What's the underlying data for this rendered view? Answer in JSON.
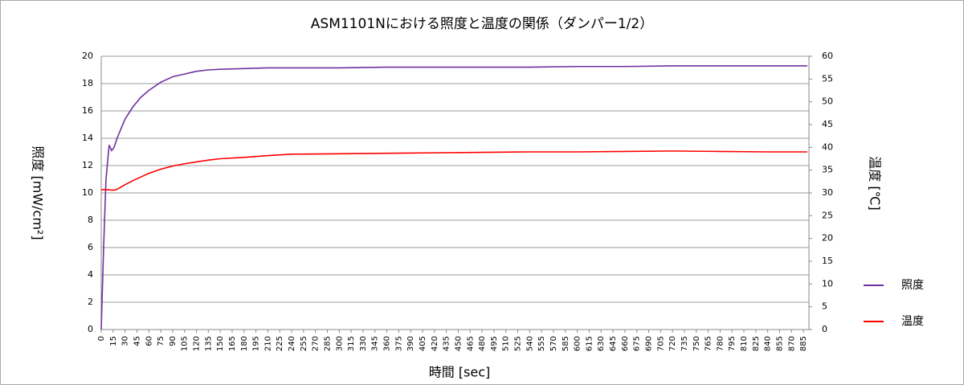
{
  "chart_data": {
    "type": "line",
    "title": "ASM1101Nにおける照度と温度の関係（ダンパー1/2）",
    "x_label": "時間 [sec]",
    "y_label": "照度 [mW/cm²]",
    "y2_label": "温度 [℃]",
    "x": [
      0,
      3,
      6,
      10,
      13,
      16,
      20,
      25,
      30,
      40,
      50,
      60,
      75,
      90,
      105,
      120,
      135,
      150,
      180,
      210,
      240,
      300,
      360,
      420,
      480,
      540,
      600,
      660,
      720,
      780,
      840,
      890
    ],
    "series": [
      {
        "name": "照度",
        "color": "#7030a0",
        "axis": "y",
        "values": [
          0,
          6,
          11,
          13.5,
          13.1,
          13.3,
          14.0,
          14.7,
          15.4,
          16.3,
          17.0,
          17.5,
          18.1,
          18.5,
          18.7,
          18.9,
          19.0,
          19.05,
          19.1,
          19.15,
          19.15,
          19.15,
          19.2,
          19.2,
          19.2,
          19.2,
          19.25,
          19.25,
          19.3,
          19.3,
          19.3,
          19.3
        ]
      },
      {
        "name": "温度",
        "color": "#ff0000",
        "axis": "y2",
        "values": [
          30.7,
          30.7,
          30.7,
          30.7,
          30.6,
          30.6,
          30.8,
          31.3,
          31.8,
          32.7,
          33.5,
          34.3,
          35.2,
          35.9,
          36.4,
          36.8,
          37.2,
          37.5,
          37.8,
          38.2,
          38.5,
          38.6,
          38.7,
          38.8,
          38.9,
          39.0,
          39.0,
          39.1,
          39.2,
          39.1,
          39.0,
          39.0
        ]
      }
    ],
    "xlim": [
      0,
      892
    ],
    "xticks": [
      0,
      15,
      30,
      45,
      60,
      75,
      90,
      105,
      120,
      135,
      150,
      165,
      180,
      195,
      210,
      225,
      240,
      255,
      270,
      285,
      300,
      315,
      330,
      345,
      360,
      375,
      390,
      405,
      420,
      435,
      450,
      465,
      480,
      495,
      510,
      525,
      540,
      555,
      570,
      585,
      600,
      615,
      630,
      645,
      660,
      675,
      690,
      705,
      720,
      735,
      750,
      765,
      780,
      795,
      810,
      825,
      840,
      855,
      870,
      885
    ],
    "ylim": [
      0,
      20
    ],
    "yticks": [
      0,
      2,
      4,
      6,
      8,
      10,
      12,
      14,
      16,
      18,
      20
    ],
    "y2lim": [
      0,
      60
    ],
    "y2ticks": [
      0,
      5,
      10,
      15,
      20,
      25,
      30,
      35,
      40,
      45,
      50,
      55,
      60
    ],
    "grid": true,
    "legend": "right"
  }
}
